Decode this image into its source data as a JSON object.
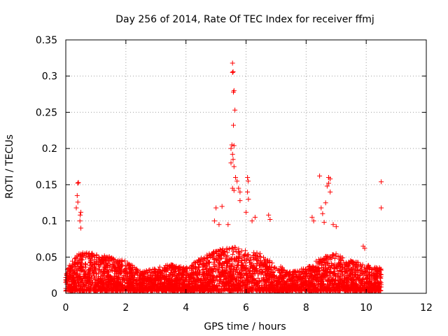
{
  "chart_data": {
    "type": "scatter",
    "title": "Day 256 of 2014, Rate Of TEC Index for receiver ffmj",
    "xlabel": "GPS time / hours",
    "ylabel": "ROTI / TECUs",
    "xlim": [
      0,
      12
    ],
    "ylim": [
      0,
      0.35
    ],
    "xticks": [
      "0",
      "2",
      "4",
      "6",
      "8",
      "10",
      "12"
    ],
    "yticks": [
      "0",
      "0.05",
      "0.1",
      "0.15",
      "0.2",
      "0.25",
      "0.3",
      "0.35"
    ],
    "grid": true,
    "marker": "plus",
    "color": "#ff0000",
    "series": [
      {
        "name": "ROTI",
        "baseline_x_range": [
          0,
          10.5
        ],
        "baseline_envelope": [
          [
            0.0,
            0.03
          ],
          [
            0.2,
            0.045
          ],
          [
            0.5,
            0.06
          ],
          [
            1.0,
            0.055
          ],
          [
            1.5,
            0.05
          ],
          [
            2.0,
            0.045
          ],
          [
            2.5,
            0.03
          ],
          [
            3.0,
            0.035
          ],
          [
            3.5,
            0.04
          ],
          [
            4.0,
            0.035
          ],
          [
            4.5,
            0.05
          ],
          [
            5.0,
            0.06
          ],
          [
            5.5,
            0.065
          ],
          [
            6.0,
            0.06
          ],
          [
            6.5,
            0.055
          ],
          [
            7.0,
            0.04
          ],
          [
            7.5,
            0.03
          ],
          [
            8.0,
            0.035
          ],
          [
            8.5,
            0.05
          ],
          [
            9.0,
            0.055
          ],
          [
            9.5,
            0.045
          ],
          [
            10.0,
            0.04
          ],
          [
            10.5,
            0.035
          ]
        ],
        "peaks": [
          [
            0.38,
            0.135
          ],
          [
            0.4,
            0.152
          ],
          [
            0.42,
            0.153
          ],
          [
            0.4,
            0.126
          ],
          [
            0.35,
            0.118
          ],
          [
            0.48,
            0.108
          ],
          [
            0.5,
            0.112
          ],
          [
            0.47,
            0.1
          ],
          [
            0.5,
            0.09
          ],
          [
            5.55,
            0.318
          ],
          [
            5.57,
            0.306
          ],
          [
            5.55,
            0.305
          ],
          [
            5.6,
            0.28
          ],
          [
            5.58,
            0.278
          ],
          [
            5.63,
            0.253
          ],
          [
            5.58,
            0.232
          ],
          [
            5.53,
            0.205
          ],
          [
            5.6,
            0.204
          ],
          [
            5.5,
            0.2
          ],
          [
            5.55,
            0.192
          ],
          [
            5.57,
            0.185
          ],
          [
            5.5,
            0.18
          ],
          [
            5.6,
            0.175
          ],
          [
            5.65,
            0.16
          ],
          [
            5.7,
            0.155
          ],
          [
            5.75,
            0.145
          ],
          [
            5.55,
            0.145
          ],
          [
            5.8,
            0.14
          ],
          [
            5.6,
            0.142
          ],
          [
            6.05,
            0.16
          ],
          [
            6.07,
            0.155
          ],
          [
            6.05,
            0.14
          ],
          [
            6.08,
            0.13
          ],
          [
            5.8,
            0.128
          ],
          [
            5.2,
            0.12
          ],
          [
            5.0,
            0.118
          ],
          [
            6.0,
            0.112
          ],
          [
            6.3,
            0.105
          ],
          [
            6.75,
            0.108
          ],
          [
            6.8,
            0.102
          ],
          [
            4.95,
            0.1
          ],
          [
            5.4,
            0.095
          ],
          [
            6.2,
            0.1
          ],
          [
            5.1,
            0.095
          ],
          [
            8.45,
            0.162
          ],
          [
            8.75,
            0.16
          ],
          [
            8.8,
            0.158
          ],
          [
            8.75,
            0.152
          ],
          [
            8.7,
            0.148
          ],
          [
            8.8,
            0.14
          ],
          [
            8.65,
            0.125
          ],
          [
            8.5,
            0.118
          ],
          [
            8.55,
            0.11
          ],
          [
            8.2,
            0.105
          ],
          [
            8.25,
            0.1
          ],
          [
            8.6,
            0.098
          ],
          [
            8.9,
            0.095
          ],
          [
            9.0,
            0.092
          ],
          [
            10.5,
            0.154
          ],
          [
            10.5,
            0.118
          ],
          [
            9.9,
            0.065
          ],
          [
            9.95,
            0.062
          ]
        ]
      }
    ]
  }
}
